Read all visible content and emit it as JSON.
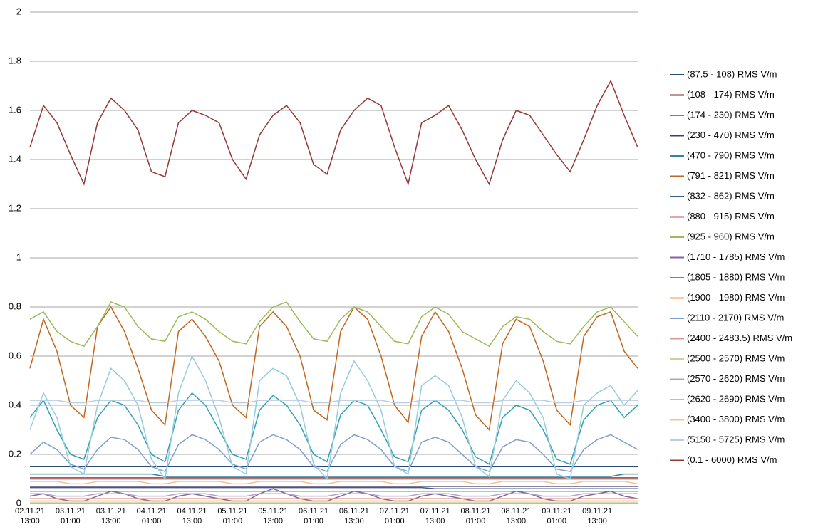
{
  "chart_data": {
    "type": "line",
    "categories": [
      "02.11.21 13:00",
      null,
      null,
      "03.11.21 01:00",
      null,
      null,
      "03.11.21 13:00",
      null,
      null,
      "04.11.21 01:00",
      null,
      null,
      "04.11.21 13:00",
      null,
      null,
      "05.11.21 01:00",
      null,
      null,
      "05.11.21 13:00",
      null,
      null,
      "06.11.21 01:00",
      null,
      null,
      "06.11.21 13:00",
      null,
      null,
      "07.11.21 01:00",
      null,
      null,
      "07.11.21 13:00",
      null,
      null,
      "08.11.21 01:00",
      null,
      null,
      "08.11.21 13:00",
      null,
      null,
      "09.11.21 01:00",
      null,
      null,
      "09.11.21 13:00",
      null,
      null,
      null
    ],
    "ylim": [
      0,
      2
    ],
    "yticks": [
      0,
      0.2,
      0.4,
      0.6,
      0.8,
      1,
      1.2,
      1.4,
      1.6,
      1.8,
      2
    ],
    "grid": true,
    "series": [
      {
        "name": "(87.5 - 108) RMS  V/m",
        "color": "#2c4d75",
        "values": [
          0.15,
          0.15,
          0.15,
          0.15,
          0.15,
          0.15,
          0.15,
          0.15,
          0.15,
          0.15,
          0.15,
          0.15,
          0.15,
          0.15,
          0.15,
          0.15,
          0.15,
          0.15,
          0.15,
          0.15,
          0.15,
          0.15,
          0.15,
          0.15,
          0.15,
          0.15,
          0.15,
          0.15,
          0.15,
          0.15,
          0.15,
          0.15,
          0.15,
          0.15,
          0.15,
          0.15,
          0.15,
          0.15,
          0.15,
          0.15,
          0.15,
          0.15,
          0.15,
          0.15,
          0.15,
          0.15
        ]
      },
      {
        "name": "(108 - 174) RMS  V/m",
        "color": "#772c2a",
        "values": [
          0.1,
          0.1,
          0.1,
          0.1,
          0.1,
          0.1,
          0.1,
          0.1,
          0.1,
          0.1,
          0.1,
          0.1,
          0.1,
          0.1,
          0.1,
          0.1,
          0.1,
          0.1,
          0.1,
          0.1,
          0.1,
          0.1,
          0.1,
          0.1,
          0.1,
          0.1,
          0.1,
          0.1,
          0.1,
          0.1,
          0.1,
          0.1,
          0.1,
          0.1,
          0.1,
          0.1,
          0.1,
          0.1,
          0.1,
          0.1,
          0.1,
          0.1,
          0.1,
          0.1,
          0.1,
          0.1
        ]
      },
      {
        "name": "(174 - 230) RMS  V/m",
        "color": "#77933c",
        "values": [
          0.05,
          0.05,
          0.05,
          0.05,
          0.05,
          0.05,
          0.05,
          0.05,
          0.05,
          0.05,
          0.05,
          0.05,
          0.05,
          0.05,
          0.05,
          0.05,
          0.05,
          0.05,
          0.05,
          0.05,
          0.05,
          0.05,
          0.05,
          0.05,
          0.05,
          0.05,
          0.05,
          0.05,
          0.05,
          0.05,
          0.05,
          0.05,
          0.05,
          0.05,
          0.05,
          0.05,
          0.05,
          0.05,
          0.05,
          0.05,
          0.05,
          0.05,
          0.05,
          0.05,
          0.05,
          0.05
        ]
      },
      {
        "name": "(230 - 470) RMS  V/m",
        "color": "#4d3b62",
        "values": [
          0.07,
          0.07,
          0.07,
          0.07,
          0.07,
          0.07,
          0.07,
          0.07,
          0.07,
          0.07,
          0.07,
          0.07,
          0.07,
          0.07,
          0.07,
          0.07,
          0.07,
          0.07,
          0.07,
          0.07,
          0.07,
          0.07,
          0.07,
          0.07,
          0.07,
          0.07,
          0.07,
          0.07,
          0.07,
          0.07,
          0.07,
          0.07,
          0.07,
          0.07,
          0.07,
          0.07,
          0.07,
          0.07,
          0.07,
          0.07,
          0.07,
          0.07,
          0.07,
          0.07,
          0.07,
          0.07
        ]
      },
      {
        "name": "(470 - 790) RMS  V/m",
        "color": "#31859c",
        "values": [
          0.12,
          0.12,
          0.12,
          0.12,
          0.12,
          0.12,
          0.12,
          0.12,
          0.12,
          0.12,
          0.11,
          0.11,
          0.11,
          0.11,
          0.11,
          0.11,
          0.11,
          0.11,
          0.11,
          0.11,
          0.11,
          0.11,
          0.11,
          0.11,
          0.11,
          0.11,
          0.11,
          0.11,
          0.11,
          0.11,
          0.11,
          0.11,
          0.11,
          0.11,
          0.11,
          0.11,
          0.11,
          0.11,
          0.11,
          0.11,
          0.11,
          0.11,
          0.11,
          0.11,
          0.12,
          0.12
        ]
      },
      {
        "name": "(791 - 821) RMS  V/m",
        "color": "#c0661f",
        "values": [
          0.55,
          0.75,
          0.62,
          0.4,
          0.35,
          0.72,
          0.8,
          0.7,
          0.55,
          0.38,
          0.32,
          0.7,
          0.75,
          0.68,
          0.58,
          0.4,
          0.35,
          0.72,
          0.78,
          0.72,
          0.6,
          0.38,
          0.34,
          0.7,
          0.8,
          0.75,
          0.6,
          0.4,
          0.33,
          0.68,
          0.78,
          0.7,
          0.55,
          0.36,
          0.3,
          0.65,
          0.75,
          0.72,
          0.58,
          0.38,
          0.32,
          0.68,
          0.76,
          0.78,
          0.62,
          0.55
        ]
      },
      {
        "name": "(832 - 862) RMS  V/m",
        "color": "#376092",
        "values": [
          0.065,
          0.065,
          0.065,
          0.065,
          0.065,
          0.065,
          0.065,
          0.065,
          0.065,
          0.065,
          0.065,
          0.065,
          0.065,
          0.065,
          0.065,
          0.065,
          0.065,
          0.065,
          0.065,
          0.065,
          0.065,
          0.065,
          0.065,
          0.065,
          0.065,
          0.065,
          0.065,
          0.065,
          0.065,
          0.065,
          0.06,
          0.06,
          0.06,
          0.06,
          0.06,
          0.06,
          0.06,
          0.06,
          0.06,
          0.06,
          0.06,
          0.06,
          0.06,
          0.06,
          0.06,
          0.06
        ]
      },
      {
        "name": "(880 - 915) RMS  V/m",
        "color": "#c0504d",
        "values": [
          0.105,
          0.105,
          0.105,
          0.105,
          0.105,
          0.105,
          0.105,
          0.105,
          0.105,
          0.105,
          0.105,
          0.105,
          0.105,
          0.105,
          0.105,
          0.105,
          0.105,
          0.105,
          0.105,
          0.105,
          0.105,
          0.105,
          0.105,
          0.105,
          0.105,
          0.105,
          0.105,
          0.105,
          0.105,
          0.105,
          0.105,
          0.105,
          0.105,
          0.105,
          0.105,
          0.105,
          0.105,
          0.105,
          0.105,
          0.105,
          0.105,
          0.105,
          0.105,
          0.105,
          0.105,
          0.105
        ]
      },
      {
        "name": "(925 - 960) RMS  V/m",
        "color": "#9bbb59",
        "values": [
          0.75,
          0.78,
          0.7,
          0.66,
          0.64,
          0.72,
          0.82,
          0.8,
          0.72,
          0.67,
          0.66,
          0.76,
          0.78,
          0.75,
          0.7,
          0.66,
          0.65,
          0.74,
          0.8,
          0.82,
          0.74,
          0.67,
          0.66,
          0.75,
          0.8,
          0.78,
          0.72,
          0.66,
          0.65,
          0.76,
          0.8,
          0.77,
          0.7,
          0.67,
          0.64,
          0.72,
          0.76,
          0.75,
          0.7,
          0.66,
          0.65,
          0.72,
          0.78,
          0.8,
          0.74,
          0.68
        ]
      },
      {
        "name": "(1710 - 1785) RMS  V/m",
        "color": "#8064a2",
        "values": [
          0.03,
          0.04,
          0.02,
          0.01,
          0.01,
          0.03,
          0.05,
          0.04,
          0.02,
          0.01,
          0.01,
          0.03,
          0.04,
          0.03,
          0.02,
          0.01,
          0.01,
          0.04,
          0.06,
          0.04,
          0.02,
          0.01,
          0.01,
          0.03,
          0.05,
          0.04,
          0.02,
          0.01,
          0.01,
          0.03,
          0.04,
          0.03,
          0.02,
          0.01,
          0.01,
          0.03,
          0.05,
          0.04,
          0.02,
          0.01,
          0.01,
          0.03,
          0.04,
          0.05,
          0.03,
          0.02
        ]
      },
      {
        "name": "(1805 - 1880) RMS  V/m",
        "color": "#31a0b4",
        "values": [
          0.35,
          0.42,
          0.3,
          0.2,
          0.18,
          0.35,
          0.42,
          0.4,
          0.32,
          0.2,
          0.17,
          0.38,
          0.45,
          0.4,
          0.3,
          0.2,
          0.18,
          0.38,
          0.44,
          0.4,
          0.32,
          0.2,
          0.17,
          0.36,
          0.42,
          0.4,
          0.3,
          0.19,
          0.17,
          0.38,
          0.42,
          0.38,
          0.3,
          0.19,
          0.16,
          0.35,
          0.4,
          0.38,
          0.3,
          0.18,
          0.16,
          0.34,
          0.4,
          0.42,
          0.35,
          0.4
        ]
      },
      {
        "name": "(1900 - 1980) RMS  V/m",
        "color": "#f79646",
        "values": [
          0.01,
          0.01,
          0.01,
          0.01,
          0.01,
          0.01,
          0.01,
          0.01,
          0.01,
          0.01,
          0.01,
          0.01,
          0.01,
          0.01,
          0.01,
          0.01,
          0.01,
          0.01,
          0.01,
          0.01,
          0.01,
          0.01,
          0.01,
          0.01,
          0.01,
          0.01,
          0.01,
          0.01,
          0.01,
          0.01,
          0.01,
          0.01,
          0.01,
          0.01,
          0.01,
          0.01,
          0.01,
          0.01,
          0.01,
          0.01,
          0.01,
          0.01,
          0.01,
          0.01,
          0.01,
          0.01
        ]
      },
      {
        "name": "(2110 - 2170) RMS  V/m",
        "color": "#7f9fd0",
        "values": [
          0.2,
          0.25,
          0.22,
          0.16,
          0.14,
          0.22,
          0.27,
          0.26,
          0.22,
          0.15,
          0.13,
          0.24,
          0.28,
          0.26,
          0.22,
          0.16,
          0.14,
          0.25,
          0.28,
          0.26,
          0.22,
          0.15,
          0.13,
          0.24,
          0.28,
          0.26,
          0.22,
          0.15,
          0.13,
          0.25,
          0.27,
          0.25,
          0.2,
          0.15,
          0.13,
          0.23,
          0.26,
          0.25,
          0.2,
          0.14,
          0.13,
          0.22,
          0.26,
          0.28,
          0.25,
          0.22
        ]
      },
      {
        "name": "(2400 - 2483.5) RMS  V/m",
        "color": "#d99694",
        "values": [
          0.02,
          0.02,
          0.02,
          0.02,
          0.02,
          0.02,
          0.02,
          0.02,
          0.02,
          0.02,
          0.02,
          0.02,
          0.02,
          0.02,
          0.02,
          0.02,
          0.02,
          0.02,
          0.02,
          0.02,
          0.02,
          0.02,
          0.02,
          0.02,
          0.02,
          0.02,
          0.02,
          0.02,
          0.02,
          0.02,
          0.02,
          0.02,
          0.02,
          0.02,
          0.02,
          0.02,
          0.02,
          0.02,
          0.02,
          0.02,
          0.02,
          0.02,
          0.02,
          0.02,
          0.02,
          0.02
        ]
      },
      {
        "name": "(2500 - 2570) RMS  V/m",
        "color": "#c3d69b",
        "values": [
          0.003,
          0.003,
          0.003,
          0.003,
          0.003,
          0.003,
          0.003,
          0.003,
          0.003,
          0.003,
          0.003,
          0.003,
          0.003,
          0.003,
          0.003,
          0.003,
          0.003,
          0.003,
          0.003,
          0.003,
          0.003,
          0.003,
          0.003,
          0.003,
          0.003,
          0.003,
          0.003,
          0.003,
          0.003,
          0.003,
          0.003,
          0.003,
          0.003,
          0.003,
          0.003,
          0.003,
          0.003,
          0.003,
          0.003,
          0.003,
          0.003,
          0.003,
          0.003,
          0.003,
          0.003,
          0.003
        ]
      },
      {
        "name": "(2570 - 2620) RMS  V/m",
        "color": "#b3a2c7",
        "values": [
          0.04,
          0.04,
          0.03,
          0.03,
          0.03,
          0.04,
          0.04,
          0.04,
          0.03,
          0.03,
          0.03,
          0.04,
          0.04,
          0.04,
          0.03,
          0.03,
          0.03,
          0.04,
          0.04,
          0.04,
          0.03,
          0.03,
          0.03,
          0.04,
          0.04,
          0.04,
          0.03,
          0.03,
          0.03,
          0.04,
          0.04,
          0.04,
          0.03,
          0.03,
          0.03,
          0.04,
          0.04,
          0.04,
          0.03,
          0.03,
          0.03,
          0.04,
          0.04,
          0.04,
          0.04,
          0.04
        ]
      },
      {
        "name": "(2620 - 2690) RMS  V/m",
        "color": "#93cddd",
        "values": [
          0.3,
          0.45,
          0.35,
          0.15,
          0.12,
          0.4,
          0.55,
          0.5,
          0.4,
          0.18,
          0.1,
          0.45,
          0.6,
          0.5,
          0.35,
          0.15,
          0.12,
          0.5,
          0.55,
          0.52,
          0.4,
          0.16,
          0.1,
          0.45,
          0.58,
          0.5,
          0.38,
          0.15,
          0.12,
          0.48,
          0.52,
          0.48,
          0.35,
          0.15,
          0.11,
          0.42,
          0.5,
          0.45,
          0.35,
          0.12,
          0.1,
          0.4,
          0.45,
          0.48,
          0.4,
          0.46
        ]
      },
      {
        "name": "(3400 - 3800) RMS  V/m",
        "color": "#fac090",
        "values": [
          0.09,
          0.09,
          0.09,
          0.08,
          0.08,
          0.09,
          0.09,
          0.09,
          0.09,
          0.08,
          0.08,
          0.09,
          0.09,
          0.09,
          0.09,
          0.08,
          0.08,
          0.09,
          0.09,
          0.09,
          0.09,
          0.08,
          0.08,
          0.09,
          0.09,
          0.09,
          0.09,
          0.08,
          0.08,
          0.09,
          0.09,
          0.09,
          0.09,
          0.08,
          0.08,
          0.09,
          0.09,
          0.09,
          0.09,
          0.08,
          0.08,
          0.09,
          0.09,
          0.09,
          0.09,
          0.08
        ]
      },
      {
        "name": "(5150 - 5725) RMS  V/m",
        "color": "#b9cde5",
        "values": [
          0.42,
          0.42,
          0.42,
          0.41,
          0.41,
          0.42,
          0.42,
          0.42,
          0.42,
          0.41,
          0.41,
          0.42,
          0.42,
          0.42,
          0.42,
          0.41,
          0.41,
          0.42,
          0.42,
          0.42,
          0.42,
          0.41,
          0.41,
          0.42,
          0.42,
          0.42,
          0.42,
          0.41,
          0.41,
          0.42,
          0.42,
          0.42,
          0.42,
          0.41,
          0.41,
          0.42,
          0.42,
          0.42,
          0.42,
          0.41,
          0.41,
          0.42,
          0.42,
          0.42,
          0.42,
          0.42
        ]
      },
      {
        "name": "(0.1 - 6000) RMS  V/m",
        "color": "#953735",
        "values": [
          1.45,
          1.62,
          1.55,
          1.42,
          1.3,
          1.55,
          1.65,
          1.6,
          1.52,
          1.35,
          1.33,
          1.55,
          1.6,
          1.58,
          1.55,
          1.4,
          1.32,
          1.5,
          1.58,
          1.62,
          1.55,
          1.38,
          1.34,
          1.52,
          1.6,
          1.65,
          1.62,
          1.45,
          1.3,
          1.55,
          1.58,
          1.62,
          1.52,
          1.4,
          1.3,
          1.48,
          1.6,
          1.58,
          1.5,
          1.42,
          1.35,
          1.48,
          1.62,
          1.72,
          1.58,
          1.45
        ]
      }
    ]
  }
}
